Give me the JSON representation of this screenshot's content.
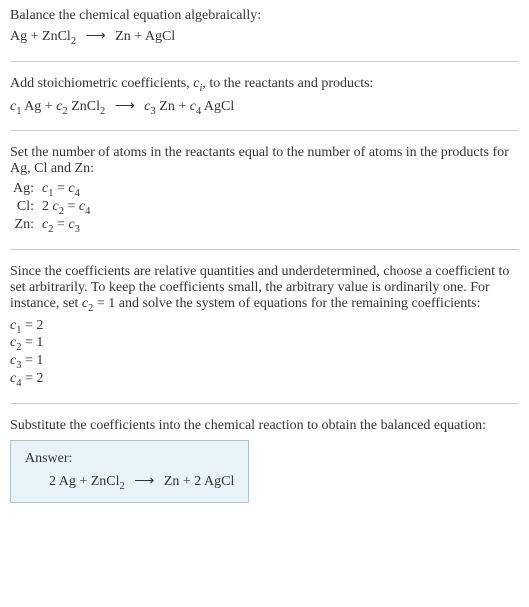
{
  "section1": {
    "line1": "Balance the chemical equation algebraically:",
    "equation": {
      "lhs1": "Ag",
      "plus1": "+",
      "lhs2": "ZnCl",
      "lhs2_sub": "2",
      "arrow": "⟶",
      "rhs1": "Zn",
      "plus2": "+",
      "rhs2": "AgCl"
    }
  },
  "section2": {
    "line1_a": "Add stoichiometric coefficients, ",
    "line1_ci": "c",
    "line1_ci_sub": "i",
    "line1_b": ", to the reactants and products:",
    "equation": {
      "c1": "c",
      "c1_sub": "1",
      "sp1": " Ag",
      "plus1": "+",
      "c2": "c",
      "c2_sub": "2",
      "sp2": " ZnCl",
      "sp2_sub": "2",
      "arrow": "⟶",
      "c3": "c",
      "c3_sub": "3",
      "sp3": " Zn",
      "plus2": "+",
      "c4": "c",
      "c4_sub": "4",
      "sp4": " AgCl"
    }
  },
  "section3": {
    "line1": "Set the number of atoms in the reactants equal to the number of atoms in the products for Ag, Cl and Zn:",
    "rows": [
      {
        "label": "Ag:",
        "lhs_c": "c",
        "lhs_sub": "1",
        "eq": " = ",
        "rhs_c": "c",
        "rhs_sub": "4",
        "prefix": ""
      },
      {
        "label": "Cl:",
        "lhs_c": "c",
        "lhs_sub": "2",
        "eq": " = ",
        "rhs_c": "c",
        "rhs_sub": "4",
        "prefix": "2 "
      },
      {
        "label": "Zn:",
        "lhs_c": "c",
        "lhs_sub": "2",
        "eq": " = ",
        "rhs_c": "c",
        "rhs_sub": "3",
        "prefix": ""
      }
    ]
  },
  "section4": {
    "line1_a": "Since the coefficients are relative quantities and underdetermined, choose a coefficient to set arbitrarily. To keep the coefficients small, the arbitrary value is ordinarily one. For instance, set ",
    "line1_c": "c",
    "line1_c_sub": "2",
    "line1_b": " = 1 and solve the system of equations for the remaining coefficients:",
    "coefs": [
      {
        "c": "c",
        "sub": "1",
        "val": " = 2"
      },
      {
        "c": "c",
        "sub": "2",
        "val": " = 1"
      },
      {
        "c": "c",
        "sub": "3",
        "val": " = 1"
      },
      {
        "c": "c",
        "sub": "4",
        "val": " = 2"
      }
    ]
  },
  "section5": {
    "line1": "Substitute the coefficients into the chemical reaction to obtain the balanced equation:",
    "answer_label": "Answer:",
    "answer": {
      "lhs": "2 Ag + ZnCl",
      "lhs_sub": "2",
      "arrow": "⟶",
      "rhs": "Zn + 2 AgCl"
    }
  }
}
